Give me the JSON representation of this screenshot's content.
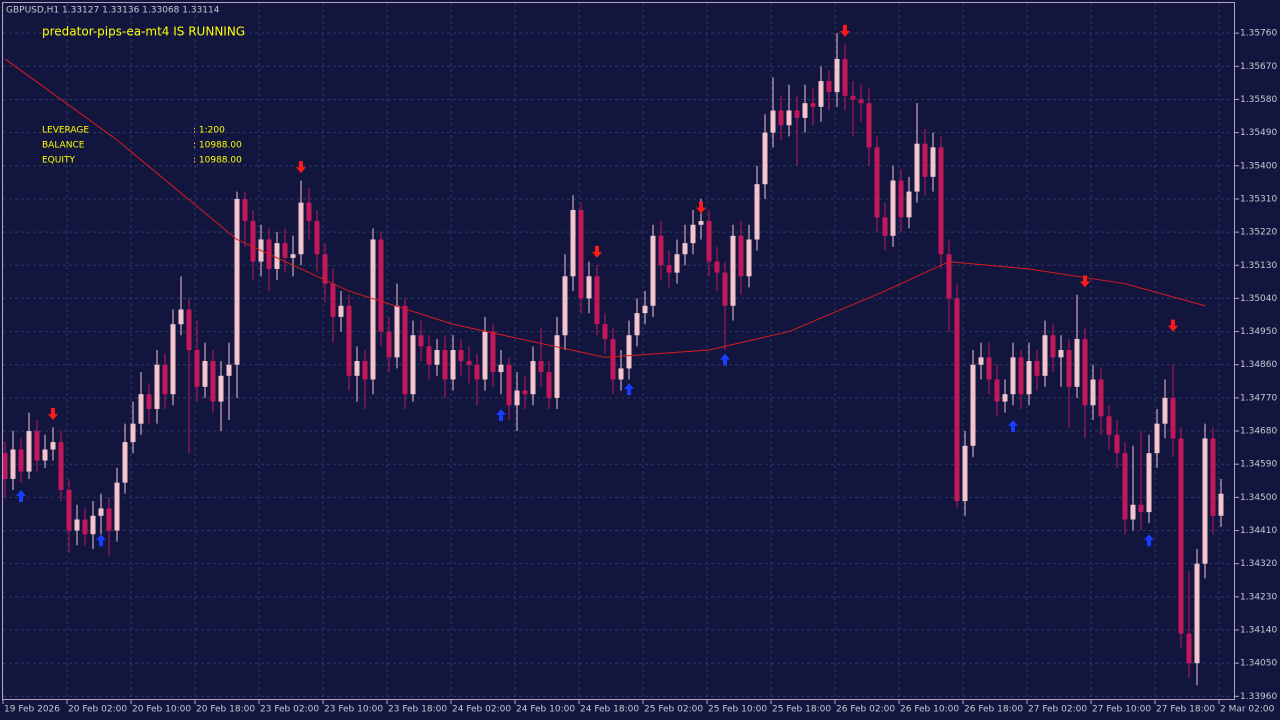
{
  "chart_data": {
    "type": "candlestick",
    "header": "GBPUSD,H1  1.33127 1.33136 1.33068 1.33114",
    "title": "predator-pips-ea-mt4 IS RUNNING",
    "info": [
      [
        "LEVERAGE",
        ": 1:200"
      ],
      [
        "BALANCE",
        ": 10988.00"
      ],
      [
        "EQUITY",
        ": 10988.00"
      ]
    ],
    "ylim": [
      1.3395,
      1.3585
    ],
    "yticks": [
      {
        "value": 1.3576,
        "label": "1.35760"
      },
      {
        "value": 1.3567,
        "label": "1.35670"
      },
      {
        "value": 1.3558,
        "label": "1.35580"
      },
      {
        "value": 1.3549,
        "label": "1.35490"
      },
      {
        "value": 1.354,
        "label": "1.35400"
      },
      {
        "value": 1.3531,
        "label": "1.35310"
      },
      {
        "value": 1.3522,
        "label": "1.35220"
      },
      {
        "value": 1.3513,
        "label": "1.35130"
      },
      {
        "value": 1.3504,
        "label": "1.35040"
      },
      {
        "value": 1.3495,
        "label": "1.34950"
      },
      {
        "value": 1.3486,
        "label": "1.34860"
      },
      {
        "value": 1.3477,
        "label": "1.34770"
      },
      {
        "value": 1.3468,
        "label": "1.34680"
      },
      {
        "value": 1.3459,
        "label": "1.34590"
      },
      {
        "value": 1.345,
        "label": "1.34500"
      },
      {
        "value": 1.3441,
        "label": "1.34410"
      },
      {
        "value": 1.3432,
        "label": "1.34320"
      },
      {
        "value": 1.3423,
        "label": "1.34230"
      },
      {
        "value": 1.3414,
        "label": "1.34140"
      },
      {
        "value": 1.3405,
        "label": "1.34050"
      },
      {
        "value": 1.3396,
        "label": "1.33960"
      }
    ],
    "x_labels": [
      "19 Feb 2026",
      "20 Feb 02:00",
      "20 Feb 10:00",
      "20 Feb 18:00",
      "23 Feb 02:00",
      "23 Feb 10:00",
      "23 Feb 18:00",
      "24 Feb 02:00",
      "24 Feb 10:00",
      "24 Feb 18:00",
      "25 Feb 02:00",
      "25 Feb 10:00",
      "25 Feb 18:00",
      "26 Feb 02:00",
      "26 Feb 10:00",
      "26 Feb 18:00",
      "27 Feb 02:00",
      "27 Feb 10:00",
      "27 Feb 18:00",
      "2 Mar 02:00"
    ],
    "up_color": "#f4c4cc",
    "down_color": "#c2185b",
    "candles": [
      [
        1.3462,
        1.3465,
        1.345,
        1.3455
      ],
      [
        1.3455,
        1.3468,
        1.3452,
        1.3463
      ],
      [
        1.3463,
        1.3466,
        1.3454,
        1.3457
      ],
      [
        1.3457,
        1.3473,
        1.3455,
        1.3468
      ],
      [
        1.3468,
        1.3471,
        1.3457,
        1.346
      ],
      [
        1.346,
        1.3467,
        1.3458,
        1.3463
      ],
      [
        1.3463,
        1.3469,
        1.346,
        1.3465
      ],
      [
        1.3465,
        1.3468,
        1.3449,
        1.3452
      ],
      [
        1.3452,
        1.3455,
        1.3435,
        1.3441
      ],
      [
        1.3441,
        1.3448,
        1.3437,
        1.3444
      ],
      [
        1.3444,
        1.3447,
        1.3437,
        1.344
      ],
      [
        1.344,
        1.3449,
        1.3436,
        1.3445
      ],
      [
        1.3445,
        1.3451,
        1.344,
        1.3447
      ],
      [
        1.3447,
        1.345,
        1.3434,
        1.3441
      ],
      [
        1.3441,
        1.3458,
        1.3438,
        1.3454
      ],
      [
        1.3454,
        1.347,
        1.3451,
        1.3465
      ],
      [
        1.3465,
        1.3476,
        1.3462,
        1.347
      ],
      [
        1.347,
        1.3484,
        1.3467,
        1.3478
      ],
      [
        1.3478,
        1.3481,
        1.347,
        1.3474
      ],
      [
        1.3474,
        1.349,
        1.347,
        1.3486
      ],
      [
        1.3486,
        1.3489,
        1.3474,
        1.3478
      ],
      [
        1.3478,
        1.3501,
        1.3475,
        1.3497
      ],
      [
        1.3497,
        1.351,
        1.3494,
        1.3501
      ],
      [
        1.3501,
        1.3504,
        1.3462,
        1.349
      ],
      [
        1.349,
        1.3498,
        1.3476,
        1.348
      ],
      [
        1.348,
        1.3492,
        1.3477,
        1.3487
      ],
      [
        1.3487,
        1.349,
        1.3473,
        1.3476
      ],
      [
        1.3476,
        1.3487,
        1.3468,
        1.3483
      ],
      [
        1.3483,
        1.3492,
        1.3471,
        1.3486
      ],
      [
        1.3486,
        1.3533,
        1.3477,
        1.3531
      ],
      [
        1.3531,
        1.3533,
        1.3518,
        1.3525
      ],
      [
        1.3525,
        1.3528,
        1.3509,
        1.3514
      ],
      [
        1.3514,
        1.3524,
        1.351,
        1.352
      ],
      [
        1.352,
        1.3523,
        1.3506,
        1.3512
      ],
      [
        1.3512,
        1.3522,
        1.3509,
        1.3519
      ],
      [
        1.3519,
        1.3523,
        1.3511,
        1.3515
      ],
      [
        1.3515,
        1.3521,
        1.351,
        1.3516
      ],
      [
        1.3516,
        1.3536,
        1.3513,
        1.353
      ],
      [
        1.353,
        1.3534,
        1.352,
        1.3525
      ],
      [
        1.3525,
        1.3528,
        1.3511,
        1.3516
      ],
      [
        1.3516,
        1.3519,
        1.3503,
        1.3508
      ],
      [
        1.3508,
        1.3512,
        1.3492,
        1.3499
      ],
      [
        1.3499,
        1.3506,
        1.3495,
        1.3502
      ],
      [
        1.3502,
        1.3505,
        1.3479,
        1.3483
      ],
      [
        1.3483,
        1.3491,
        1.3476,
        1.3487
      ],
      [
        1.3487,
        1.349,
        1.3474,
        1.3482
      ],
      [
        1.3482,
        1.3523,
        1.3478,
        1.352
      ],
      [
        1.352,
        1.3522,
        1.3491,
        1.3495
      ],
      [
        1.3495,
        1.3499,
        1.3484,
        1.3488
      ],
      [
        1.3488,
        1.3508,
        1.3485,
        1.3502
      ],
      [
        1.3502,
        1.3504,
        1.3474,
        1.3478
      ],
      [
        1.3478,
        1.3498,
        1.3476,
        1.3494
      ],
      [
        1.3494,
        1.3498,
        1.3487,
        1.3491
      ],
      [
        1.3491,
        1.3494,
        1.3482,
        1.3486
      ],
      [
        1.3486,
        1.3493,
        1.3483,
        1.349
      ],
      [
        1.349,
        1.3494,
        1.3477,
        1.3482
      ],
      [
        1.3482,
        1.3494,
        1.3479,
        1.349
      ],
      [
        1.349,
        1.3493,
        1.3483,
        1.3487
      ],
      [
        1.3487,
        1.3491,
        1.3481,
        1.3486
      ],
      [
        1.3486,
        1.3489,
        1.3475,
        1.3482
      ],
      [
        1.3482,
        1.3499,
        1.3479,
        1.3495
      ],
      [
        1.3495,
        1.3497,
        1.348,
        1.3484
      ],
      [
        1.3484,
        1.349,
        1.3478,
        1.3486
      ],
      [
        1.3486,
        1.3488,
        1.3471,
        1.3475
      ],
      [
        1.3475,
        1.3484,
        1.3468,
        1.3479
      ],
      [
        1.3479,
        1.3483,
        1.3474,
        1.3478
      ],
      [
        1.3478,
        1.3491,
        1.3475,
        1.3487
      ],
      [
        1.3487,
        1.3496,
        1.348,
        1.3484
      ],
      [
        1.3484,
        1.3487,
        1.3474,
        1.3477
      ],
      [
        1.3477,
        1.3499,
        1.3474,
        1.3494
      ],
      [
        1.3494,
        1.3516,
        1.349,
        1.351
      ],
      [
        1.351,
        1.3532,
        1.3506,
        1.3528
      ],
      [
        1.3528,
        1.353,
        1.35,
        1.3504
      ],
      [
        1.3504,
        1.3514,
        1.35,
        1.351
      ],
      [
        1.351,
        1.3513,
        1.3494,
        1.3497
      ],
      [
        1.3497,
        1.35,
        1.3489,
        1.3493
      ],
      [
        1.3493,
        1.3496,
        1.3478,
        1.3482
      ],
      [
        1.3482,
        1.349,
        1.3479,
        1.3485
      ],
      [
        1.3485,
        1.3498,
        1.3482,
        1.3494
      ],
      [
        1.3494,
        1.3504,
        1.3491,
        1.35
      ],
      [
        1.35,
        1.3506,
        1.3497,
        1.3502
      ],
      [
        1.3502,
        1.3524,
        1.3499,
        1.3521
      ],
      [
        1.3521,
        1.3525,
        1.3509,
        1.3513
      ],
      [
        1.3513,
        1.3517,
        1.3507,
        1.3511
      ],
      [
        1.3511,
        1.352,
        1.3508,
        1.3516
      ],
      [
        1.3516,
        1.3524,
        1.3513,
        1.3519
      ],
      [
        1.3519,
        1.3528,
        1.3516,
        1.3524
      ],
      [
        1.3524,
        1.3531,
        1.352,
        1.3525
      ],
      [
        1.3525,
        1.3528,
        1.351,
        1.3514
      ],
      [
        1.3514,
        1.3518,
        1.3506,
        1.3511
      ],
      [
        1.3511,
        1.3514,
        1.349,
        1.3502
      ],
      [
        1.3502,
        1.3524,
        1.3498,
        1.3521
      ],
      [
        1.3521,
        1.3525,
        1.3505,
        1.351
      ],
      [
        1.351,
        1.3524,
        1.3507,
        1.352
      ],
      [
        1.352,
        1.354,
        1.3517,
        1.3535
      ],
      [
        1.3535,
        1.3554,
        1.3531,
        1.3549
      ],
      [
        1.3549,
        1.3564,
        1.3545,
        1.3555
      ],
      [
        1.3555,
        1.3559,
        1.3547,
        1.3551
      ],
      [
        1.3551,
        1.3562,
        1.3548,
        1.3555
      ],
      [
        1.3555,
        1.3559,
        1.354,
        1.3553
      ],
      [
        1.3553,
        1.3562,
        1.3549,
        1.3557
      ],
      [
        1.3557,
        1.3561,
        1.3551,
        1.3556
      ],
      [
        1.3556,
        1.3567,
        1.3552,
        1.3563
      ],
      [
        1.3563,
        1.3566,
        1.3555,
        1.356
      ],
      [
        1.356,
        1.3576,
        1.3556,
        1.3569
      ],
      [
        1.3569,
        1.3573,
        1.3555,
        1.3559
      ],
      [
        1.3559,
        1.3563,
        1.3548,
        1.3558
      ],
      [
        1.3558,
        1.3562,
        1.3552,
        1.3557
      ],
      [
        1.3557,
        1.3561,
        1.354,
        1.3545
      ],
      [
        1.3545,
        1.3548,
        1.3522,
        1.3526
      ],
      [
        1.3526,
        1.353,
        1.3517,
        1.3521
      ],
      [
        1.3521,
        1.354,
        1.3518,
        1.3536
      ],
      [
        1.3536,
        1.3539,
        1.3522,
        1.3526
      ],
      [
        1.3526,
        1.3537,
        1.3523,
        1.3533
      ],
      [
        1.3533,
        1.3557,
        1.353,
        1.3546
      ],
      [
        1.3546,
        1.355,
        1.3532,
        1.3537
      ],
      [
        1.3537,
        1.3549,
        1.3533,
        1.3545
      ],
      [
        1.3545,
        1.3548,
        1.3512,
        1.3516
      ],
      [
        1.3516,
        1.352,
        1.3495,
        1.3504
      ],
      [
        1.3504,
        1.3508,
        1.3447,
        1.3449
      ],
      [
        1.3449,
        1.3468,
        1.3445,
        1.3464
      ],
      [
        1.3464,
        1.349,
        1.3461,
        1.3486
      ],
      [
        1.3486,
        1.3492,
        1.3482,
        1.3488
      ],
      [
        1.3488,
        1.3492,
        1.3478,
        1.3482
      ],
      [
        1.3482,
        1.3486,
        1.3472,
        1.3476
      ],
      [
        1.3476,
        1.3482,
        1.3473,
        1.3478
      ],
      [
        1.3478,
        1.3492,
        1.3475,
        1.3488
      ],
      [
        1.3488,
        1.349,
        1.3474,
        1.3478
      ],
      [
        1.3478,
        1.3492,
        1.3475,
        1.3487
      ],
      [
        1.3487,
        1.349,
        1.3479,
        1.3483
      ],
      [
        1.3483,
        1.3498,
        1.348,
        1.3494
      ],
      [
        1.3494,
        1.3497,
        1.3484,
        1.3488
      ],
      [
        1.3488,
        1.3494,
        1.348,
        1.349
      ],
      [
        1.349,
        1.3493,
        1.3469,
        1.348
      ],
      [
        1.348,
        1.3505,
        1.3477,
        1.3493
      ],
      [
        1.3493,
        1.3496,
        1.3466,
        1.3475
      ],
      [
        1.3475,
        1.3486,
        1.3471,
        1.3482
      ],
      [
        1.3482,
        1.3485,
        1.3467,
        1.3472
      ],
      [
        1.3472,
        1.3475,
        1.3463,
        1.3467
      ],
      [
        1.3467,
        1.3471,
        1.3458,
        1.3462
      ],
      [
        1.3462,
        1.3465,
        1.344,
        1.3444
      ],
      [
        1.3444,
        1.3464,
        1.3441,
        1.3448
      ],
      [
        1.3448,
        1.3468,
        1.3441,
        1.3446
      ],
      [
        1.3446,
        1.3467,
        1.3443,
        1.3462
      ],
      [
        1.3462,
        1.3474,
        1.3458,
        1.347
      ],
      [
        1.347,
        1.3482,
        1.3466,
        1.3477
      ],
      [
        1.3477,
        1.3486,
        1.3461,
        1.3466
      ],
      [
        1.3466,
        1.3469,
        1.3409,
        1.3413
      ],
      [
        1.3413,
        1.343,
        1.3401,
        1.3405
      ],
      [
        1.3405,
        1.3436,
        1.3399,
        1.3432
      ],
      [
        1.3432,
        1.347,
        1.3428,
        1.3466
      ],
      [
        1.3466,
        1.3469,
        1.344,
        1.3445
      ],
      [
        1.3445,
        1.3455,
        1.3442,
        1.3451
      ]
    ],
    "ma": {
      "color": "#d81c1c",
      "x": [
        0,
        14,
        29,
        43,
        56,
        75,
        88,
        98,
        110,
        118,
        128,
        140,
        150
      ],
      "values": [
        1.3569,
        1.3547,
        1.352,
        1.3506,
        1.3497,
        1.3488,
        1.349,
        1.3495,
        1.3506,
        1.3514,
        1.3512,
        1.3508,
        1.3502
      ]
    },
    "sell_arrows": {
      "color": "#ff1a1a",
      "x": [
        6,
        37,
        74,
        87,
        105,
        135,
        146
      ],
      "values": [
        1.3471,
        1.3538,
        1.3515,
        1.3527,
        1.3575,
        1.3507,
        1.3495
      ]
    },
    "buy_arrows": {
      "color": "#1a3cff",
      "x": [
        2,
        12,
        62,
        78,
        90,
        126,
        143
      ],
      "values": [
        1.3452,
        1.344,
        1.3474,
        1.3481,
        1.3489,
        1.3471,
        1.344
      ]
    }
  }
}
